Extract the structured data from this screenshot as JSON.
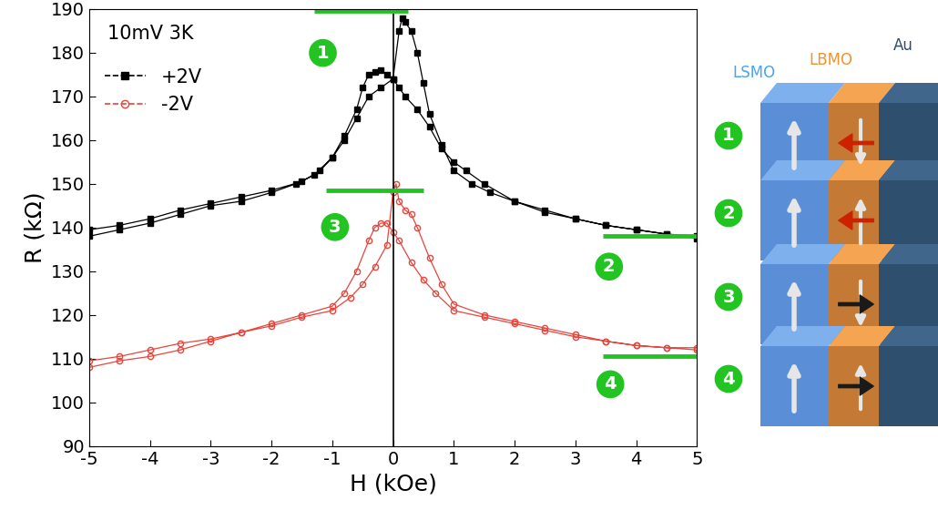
{
  "chart_data": {
    "type": "line",
    "annotations": [
      {
        "text": "10mV 3K"
      }
    ],
    "x_label": "H (kOe)",
    "y_label": "R (kΩ)",
    "xlim": [
      -5,
      5
    ],
    "ylim": [
      90,
      190
    ],
    "xticks": [
      -5,
      -4,
      -3,
      -2,
      -1,
      0,
      1,
      2,
      3,
      4,
      5
    ],
    "yticks": [
      90,
      100,
      110,
      120,
      130,
      140,
      150,
      160,
      170,
      180,
      190
    ],
    "legend": "upper left",
    "series": [
      {
        "name": "+2V",
        "color": "#000000",
        "marker": "square",
        "line_style": "solid",
        "x": [
          5,
          4.5,
          4,
          3.5,
          3,
          2.5,
          2,
          1.5,
          1.2,
          1,
          0.8,
          0.6,
          0.4,
          0.2,
          0.1,
          0,
          -0.1,
          -0.2,
          -0.3,
          -0.4,
          -0.5,
          -0.6,
          -0.8,
          -1,
          -1.3,
          -1.6,
          -2,
          -2.5,
          -3,
          -3.5,
          -4,
          -4.5,
          -5,
          -5,
          -4.5,
          -4,
          -3.5,
          -3,
          -2.5,
          -2,
          -1.5,
          -1.2,
          -1,
          -0.8,
          -0.6,
          -0.4,
          -0.2,
          0,
          0.1,
          0.15,
          0.2,
          0.3,
          0.4,
          0.5,
          0.6,
          0.8,
          1,
          1.3,
          1.6,
          2,
          2.5,
          3,
          3.5,
          4,
          4.5,
          5
        ],
        "values": [
          137.5,
          138.5,
          139.5,
          140.5,
          142,
          143.5,
          146,
          150,
          153,
          155,
          158,
          163,
          167,
          170,
          172,
          174,
          175,
          176,
          175.5,
          175,
          172,
          167,
          161,
          156,
          152,
          150,
          148,
          146,
          145,
          143,
          141,
          139.5,
          138,
          139.5,
          140.5,
          142,
          144,
          145.5,
          147,
          148.5,
          150.5,
          153,
          156,
          160,
          165,
          170,
          172,
          174,
          185,
          188,
          187,
          185,
          180,
          173,
          166,
          159,
          153,
          150,
          148,
          146,
          144,
          142,
          140.5,
          139.5,
          138.5,
          138
        ]
      },
      {
        "name": "-2V",
        "color": "#e8453c",
        "marker": "circle_open",
        "line_style": "solid",
        "x": [
          5,
          4.5,
          4,
          3.5,
          3,
          2.5,
          2,
          1.5,
          1,
          0.7,
          0.5,
          0.3,
          0.1,
          0,
          -0.1,
          -0.2,
          -0.3,
          -0.4,
          -0.6,
          -0.8,
          -1,
          -1.5,
          -2,
          -2.5,
          -3,
          -3.5,
          -4,
          -4.5,
          -5,
          -5,
          -4.5,
          -4,
          -3.5,
          -3,
          -2.5,
          -2,
          -1.5,
          -1,
          -0.7,
          -0.5,
          -0.3,
          -0.1,
          0,
          0.05,
          0.1,
          0.2,
          0.3,
          0.4,
          0.6,
          0.8,
          1,
          1.5,
          2,
          2.5,
          3,
          3.5,
          4,
          4.5,
          5
        ],
        "values": [
          112,
          112.5,
          113,
          114,
          115,
          116.5,
          118,
          119.5,
          121,
          125,
          128,
          132,
          137,
          139,
          141,
          141,
          140,
          137,
          130,
          125,
          122,
          120,
          118,
          116,
          114,
          112,
          110.5,
          109.5,
          108,
          109.5,
          110.5,
          112,
          113.5,
          114.5,
          116,
          117.5,
          119.5,
          121,
          124,
          127,
          131,
          136,
          148,
          150,
          146,
          144,
          143,
          140,
          133,
          127,
          122.5,
          120,
          118.5,
          117,
          115.5,
          114,
          113,
          112.5,
          112.5
        ]
      }
    ],
    "levels": [
      {
        "label": "1",
        "x": [
          -1.3,
          0.25
        ],
        "y": 189.5,
        "color": "#22c422"
      },
      {
        "label": "3",
        "x": [
          -1.1,
          0.5
        ],
        "y": 148.5,
        "color": "#22c422"
      },
      {
        "label": "2",
        "x": [
          3.45,
          5
        ],
        "y": 138,
        "color": "#22c422"
      },
      {
        "label": "4",
        "x": [
          3.45,
          5
        ],
        "y": 110.5,
        "color": "#22c422"
      }
    ]
  },
  "diagram": {
    "layers": [
      {
        "label": "LSMO",
        "color": "#4aa3f0"
      },
      {
        "label": "LBMO",
        "color": "#f0922e"
      },
      {
        "label": "Au",
        "color": "#2c4a6a"
      }
    ],
    "states": [
      "1",
      "2",
      "3",
      "4"
    ]
  }
}
